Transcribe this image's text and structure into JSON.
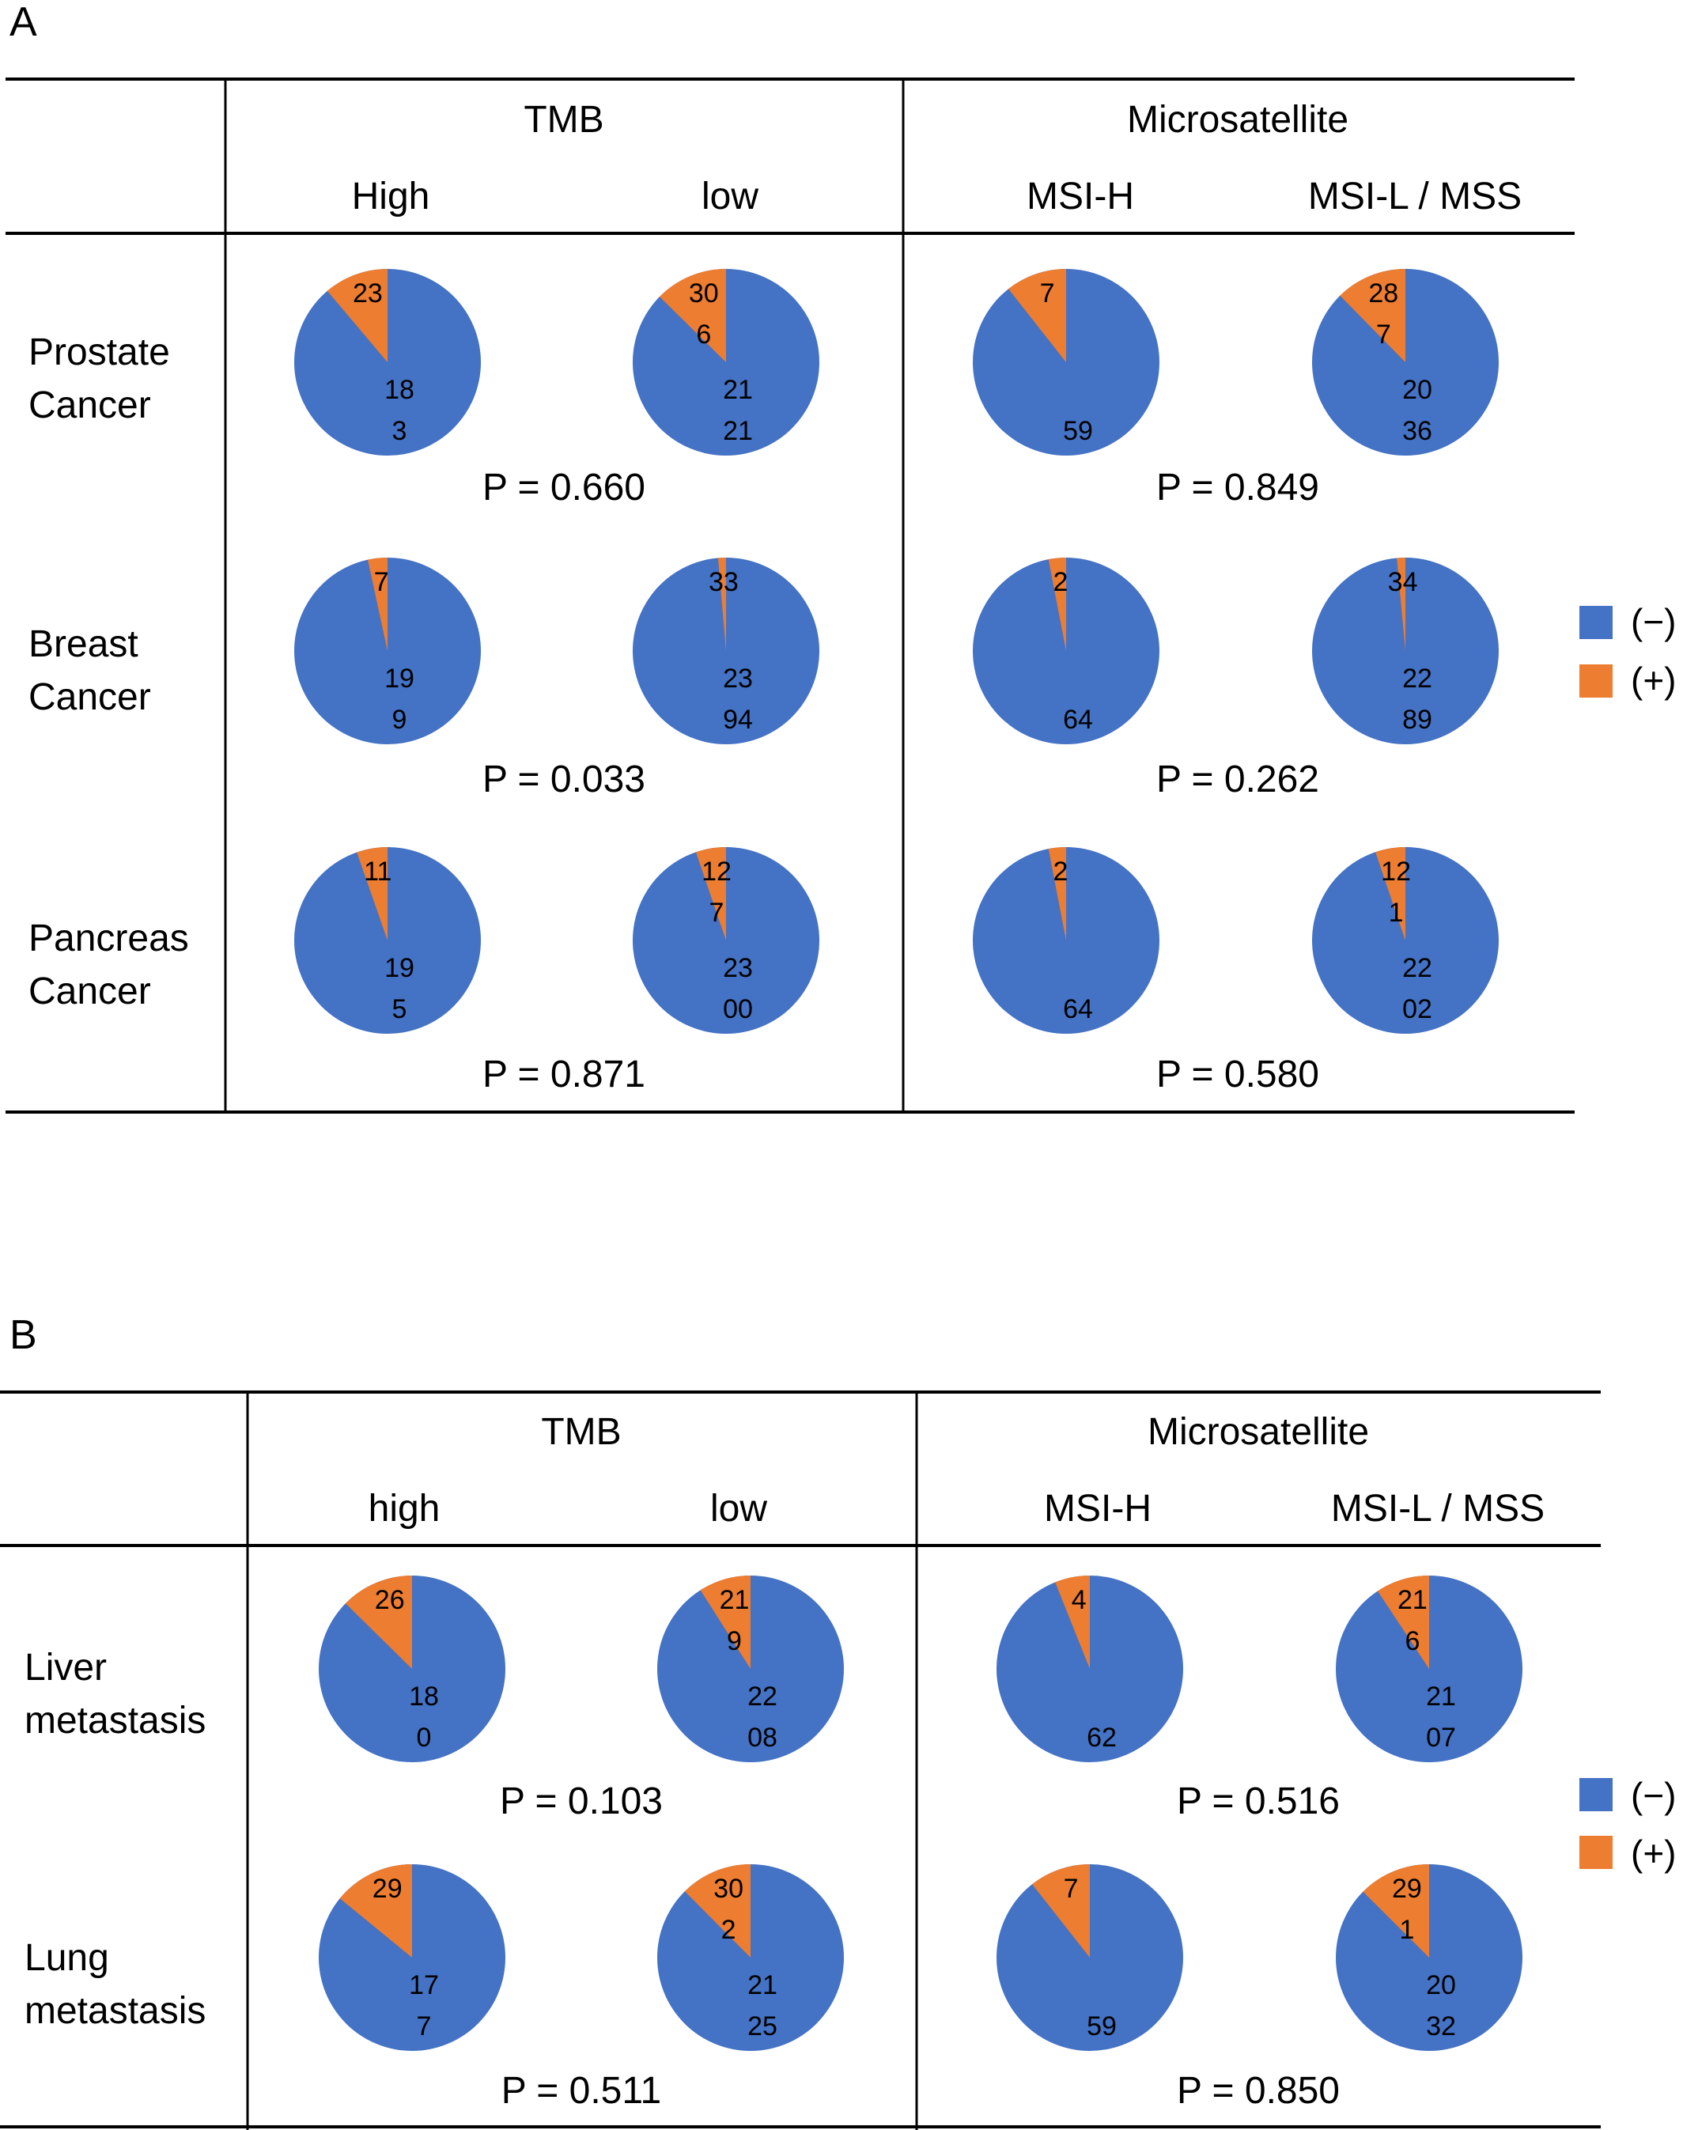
{
  "colors": {
    "negative": "#4472C4",
    "positive": "#ED7D31",
    "rule": "#000000"
  },
  "panels": [
    {
      "label": "A",
      "group_headers": [
        "TMB",
        "Microsatellite"
      ],
      "sub_headers": [
        "High",
        "low",
        "MSI-H",
        "MSI-L / MSS"
      ],
      "legend": [
        "(−)",
        "(+)"
      ],
      "rows": [
        {
          "label_lines": [
            "Prostate",
            "Cancer"
          ],
          "p_values": [
            "P = 0.660",
            "P = 0.849"
          ]
        },
        {
          "label_lines": [
            "Breast",
            "Cancer"
          ],
          "p_values": [
            "P = 0.033",
            "P = 0.262"
          ]
        },
        {
          "label_lines": [
            "Pancreas",
            "Cancer"
          ],
          "p_values": [
            "P = 0.871",
            "P = 0.580"
          ]
        }
      ]
    },
    {
      "label": "B",
      "group_headers": [
        "TMB",
        "Microsatellite"
      ],
      "sub_headers": [
        "high",
        "low",
        "MSI-H",
        "MSI-L / MSS"
      ],
      "legend": [
        "(−)",
        "(+)"
      ],
      "rows": [
        {
          "label_lines": [
            "Liver",
            "metastasis"
          ],
          "p_values": [
            "P = 0.103",
            "P = 0.516"
          ]
        },
        {
          "label_lines": [
            "Lung",
            "metastasis"
          ],
          "p_values": [
            "P = 0.511",
            "P = 0.850"
          ]
        }
      ]
    }
  ],
  "chart_data": {
    "type": "pie",
    "series_names": [
      "(−)",
      "(+)"
    ],
    "pies": [
      {
        "panel": "A",
        "row": "Prostate Cancer",
        "group": "TMB",
        "column": "High",
        "labels": [
          "183",
          "23"
        ],
        "values": [
          183,
          23
        ]
      },
      {
        "panel": "A",
        "row": "Prostate Cancer",
        "group": "TMB",
        "column": "low",
        "labels": [
          "2121",
          "306"
        ],
        "values": [
          2121,
          306
        ]
      },
      {
        "panel": "A",
        "row": "Prostate Cancer",
        "group": "Microsatellite",
        "column": "MSI-H",
        "labels": [
          "59",
          "7"
        ],
        "values": [
          59,
          7
        ]
      },
      {
        "panel": "A",
        "row": "Prostate Cancer",
        "group": "Microsatellite",
        "column": "MSI-L / MSS",
        "labels": [
          "2036",
          "287"
        ],
        "values": [
          2036,
          287
        ]
      },
      {
        "panel": "A",
        "row": "Breast Cancer",
        "group": "TMB",
        "column": "High",
        "labels": [
          "199",
          "7"
        ],
        "values": [
          199,
          7
        ]
      },
      {
        "panel": "A",
        "row": "Breast Cancer",
        "group": "TMB",
        "column": "low",
        "labels": [
          "2394",
          "33"
        ],
        "values": [
          2394,
          33
        ]
      },
      {
        "panel": "A",
        "row": "Breast Cancer",
        "group": "Microsatellite",
        "column": "MSI-H",
        "labels": [
          "64",
          "2"
        ],
        "values": [
          64,
          2
        ]
      },
      {
        "panel": "A",
        "row": "Breast Cancer",
        "group": "Microsatellite",
        "column": "MSI-L / MSS",
        "labels": [
          "2289",
          "34"
        ],
        "values": [
          2289,
          34
        ]
      },
      {
        "panel": "A",
        "row": "Pancreas Cancer",
        "group": "TMB",
        "column": "High",
        "labels": [
          "195",
          "11"
        ],
        "values": [
          195,
          11
        ]
      },
      {
        "panel": "A",
        "row": "Pancreas Cancer",
        "group": "TMB",
        "column": "low",
        "labels": [
          "2300",
          "127"
        ],
        "values": [
          2300,
          127
        ]
      },
      {
        "panel": "A",
        "row": "Pancreas Cancer",
        "group": "Microsatellite",
        "column": "MSI-H",
        "labels": [
          "64",
          "2"
        ],
        "values": [
          64,
          2
        ]
      },
      {
        "panel": "A",
        "row": "Pancreas Cancer",
        "group": "Microsatellite",
        "column": "MSI-L / MSS",
        "labels": [
          "2202",
          "121"
        ],
        "values": [
          2202,
          121
        ]
      },
      {
        "panel": "B",
        "row": "Liver metastasis",
        "group": "TMB",
        "column": "high",
        "labels": [
          "180",
          "26"
        ],
        "values": [
          180,
          26
        ]
      },
      {
        "panel": "B",
        "row": "Liver metastasis",
        "group": "TMB",
        "column": "low",
        "labels": [
          "2208",
          "219"
        ],
        "values": [
          2208,
          219
        ]
      },
      {
        "panel": "B",
        "row": "Liver metastasis",
        "group": "Microsatellite",
        "column": "MSI-H",
        "labels": [
          "62",
          "4"
        ],
        "values": [
          62,
          4
        ]
      },
      {
        "panel": "B",
        "row": "Liver metastasis",
        "group": "Microsatellite",
        "column": "MSI-L / MSS",
        "labels": [
          "2107",
          "216"
        ],
        "values": [
          2107,
          216
        ]
      },
      {
        "panel": "B",
        "row": "Lung metastasis",
        "group": "TMB",
        "column": "high",
        "labels": [
          "177",
          "29"
        ],
        "values": [
          177,
          29
        ]
      },
      {
        "panel": "B",
        "row": "Lung metastasis",
        "group": "TMB",
        "column": "low",
        "labels": [
          "2125",
          "302"
        ],
        "values": [
          2125,
          302
        ]
      },
      {
        "panel": "B",
        "row": "Lung metastasis",
        "group": "Microsatellite",
        "column": "MSI-H",
        "labels": [
          "59",
          "7"
        ],
        "values": [
          59,
          7
        ]
      },
      {
        "panel": "B",
        "row": "Lung metastasis",
        "group": "Microsatellite",
        "column": "MSI-L / MSS",
        "labels": [
          "2032",
          "291"
        ],
        "values": [
          2032,
          291
        ]
      }
    ]
  }
}
